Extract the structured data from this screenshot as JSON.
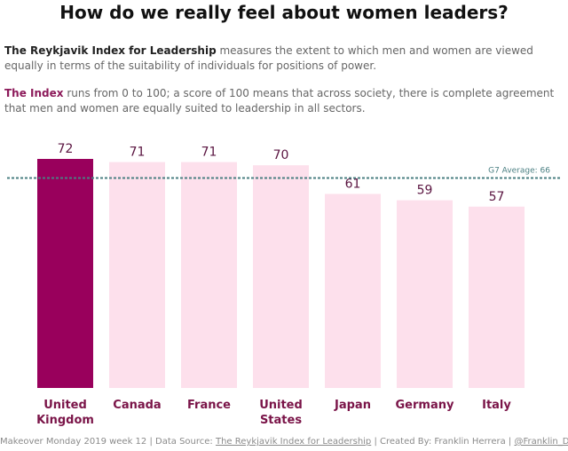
{
  "header": {
    "title": "How do we really feel about women leaders?"
  },
  "intro": {
    "p1_bold": "The Reykjavik Index for Leadership",
    "p1_text": " measures the extent to which men and women are viewed equally in terms of the suitability of individuals for positions of power.",
    "p2_bold": "The Index",
    "p2_text": " runs from 0 to 100; a score of 100 means that across society, there is complete agreement that men and women are equally suited to leadership in all sectors."
  },
  "chart_data": {
    "type": "bar",
    "title": "How do we really feel about women leaders?",
    "categories": [
      "United Kingdom",
      "Canada",
      "France",
      "United States",
      "Japan",
      "Germany",
      "Italy"
    ],
    "category_lines": [
      [
        "United",
        "Kingdom"
      ],
      [
        "Canada"
      ],
      [
        "France"
      ],
      [
        "United",
        "States"
      ],
      [
        "Japan"
      ],
      [
        "Germany"
      ],
      [
        "Italy"
      ]
    ],
    "values": [
      72,
      71,
      71,
      70,
      61,
      59,
      57
    ],
    "highlight": "United Kingdom",
    "highlight_color": "#99005c",
    "bar_color": "#fde0ec",
    "value_label_color": "#5a1440",
    "category_label_color": "#7a1448",
    "reference_line": {
      "value": 66,
      "label": "G7 Average: 66",
      "color": "#4a7f82"
    },
    "ylim": [
      0,
      72
    ],
    "xlabel": "",
    "ylabel": "",
    "grid": false,
    "legend": "none"
  },
  "footer": {
    "prefix": "Makeover Monday 2019 week 12 | Data Source: ",
    "source_link": "The Reykjavik Index for Leadership",
    "middle": " | Created By: Franklin Herrera | ",
    "handle_link": "@Franklin_Data"
  }
}
